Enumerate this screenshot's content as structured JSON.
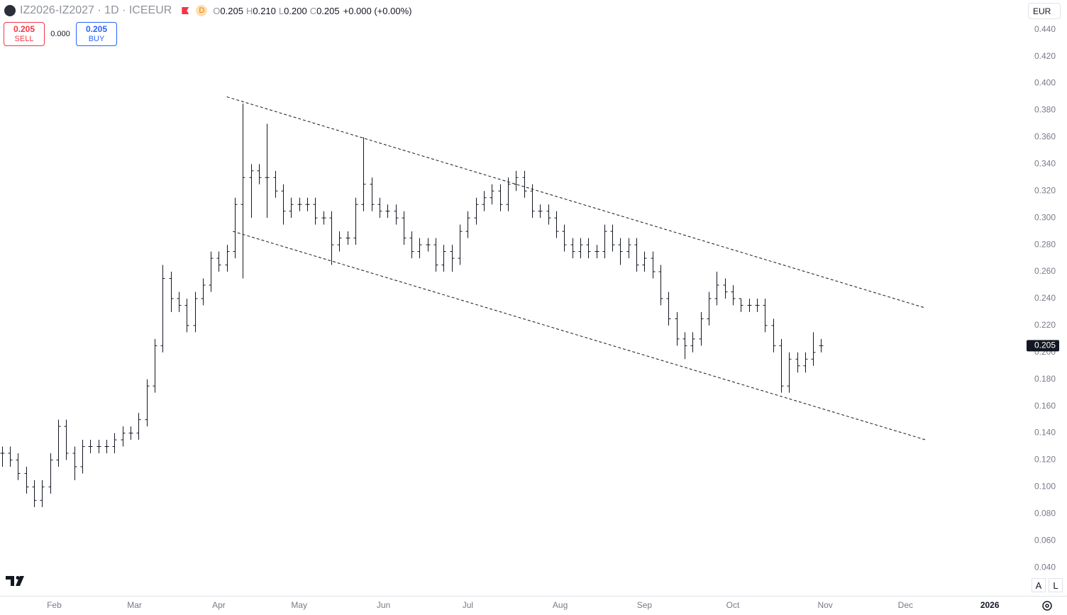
{
  "header": {
    "title": "IZ2026-IZ2027 · 1D · ICEEUR",
    "badge": "D",
    "ohlc": [
      {
        "key": "O",
        "value": "0.205"
      },
      {
        "key": "H",
        "value": "0.210"
      },
      {
        "key": "L",
        "value": "0.200"
      },
      {
        "key": "C",
        "value": "0.205"
      }
    ],
    "change": "+0.000 (+0.00%)"
  },
  "trade": {
    "sell_price": "0.205",
    "sell": "SELL",
    "spread": "0.000",
    "buy_price": "0.205",
    "buy": "BUY"
  },
  "currency": "EUR",
  "scale_buttons": [
    "A",
    "L"
  ],
  "chart_data": {
    "type": "ohlc",
    "color": "#131722",
    "x": [
      0,
      2,
      4,
      6,
      8,
      10,
      12,
      14,
      16,
      18,
      20,
      22,
      24,
      26,
      28,
      30,
      32,
      34,
      36,
      38,
      40,
      42,
      44,
      46,
      48,
      50,
      52,
      54,
      56,
      58,
      60,
      62,
      64,
      66,
      68,
      70,
      72,
      74,
      76,
      78,
      80,
      82,
      84,
      86,
      88,
      90,
      92,
      94,
      96,
      98,
      100,
      102,
      104,
      106,
      108,
      110,
      112,
      114,
      116,
      118,
      120,
      122,
      124,
      126,
      128,
      130,
      132,
      134,
      136,
      138,
      140,
      142,
      144,
      146,
      148,
      150,
      152,
      154,
      156,
      158,
      160,
      162,
      164,
      166,
      168,
      170,
      172,
      174,
      176,
      178,
      180,
      182,
      184,
      186,
      188,
      190,
      192,
      194,
      196,
      198,
      200,
      202,
      204
    ],
    "open": [
      0.125,
      0.125,
      0.12,
      0.11,
      0.1,
      0.09,
      0.1,
      0.12,
      0.145,
      0.125,
      0.115,
      0.13,
      0.13,
      0.13,
      0.13,
      0.135,
      0.14,
      0.14,
      0.15,
      0.175,
      0.205,
      0.255,
      0.24,
      0.235,
      0.22,
      0.24,
      0.25,
      0.27,
      0.265,
      0.275,
      0.31,
      0.33,
      0.335,
      0.33,
      0.33,
      0.32,
      0.305,
      0.31,
      0.31,
      0.31,
      0.3,
      0.3,
      0.28,
      0.285,
      0.285,
      0.31,
      0.325,
      0.31,
      0.305,
      0.305,
      0.3,
      0.285,
      0.275,
      0.28,
      0.28,
      0.265,
      0.275,
      0.27,
      0.29,
      0.3,
      0.31,
      0.315,
      0.32,
      0.31,
      0.325,
      0.33,
      0.32,
      0.305,
      0.305,
      0.3,
      0.29,
      0.28,
      0.275,
      0.28,
      0.275,
      0.275,
      0.29,
      0.28,
      0.275,
      0.28,
      0.265,
      0.27,
      0.26,
      0.24,
      0.225,
      0.21,
      0.205,
      0.21,
      0.225,
      0.24,
      0.25,
      0.245,
      0.24,
      0.235,
      0.235,
      0.235,
      0.22,
      0.205,
      0.175,
      0.195,
      0.19,
      0.195,
      0.205
    ],
    "high": [
      0.13,
      0.13,
      0.125,
      0.115,
      0.105,
      0.105,
      0.125,
      0.15,
      0.15,
      0.13,
      0.135,
      0.135,
      0.135,
      0.135,
      0.14,
      0.145,
      0.145,
      0.155,
      0.18,
      0.21,
      0.265,
      0.26,
      0.245,
      0.24,
      0.245,
      0.255,
      0.275,
      0.275,
      0.28,
      0.315,
      0.385,
      0.34,
      0.34,
      0.37,
      0.335,
      0.325,
      0.315,
      0.315,
      0.315,
      0.315,
      0.305,
      0.305,
      0.29,
      0.29,
      0.315,
      0.36,
      0.33,
      0.315,
      0.31,
      0.31,
      0.305,
      0.29,
      0.285,
      0.285,
      0.285,
      0.28,
      0.28,
      0.295,
      0.305,
      0.315,
      0.32,
      0.325,
      0.325,
      0.33,
      0.335,
      0.335,
      0.325,
      0.31,
      0.31,
      0.305,
      0.295,
      0.285,
      0.285,
      0.285,
      0.28,
      0.295,
      0.295,
      0.285,
      0.285,
      0.285,
      0.275,
      0.275,
      0.265,
      0.245,
      0.23,
      0.215,
      0.215,
      0.23,
      0.245,
      0.26,
      0.255,
      0.25,
      0.24,
      0.24,
      0.24,
      0.24,
      0.225,
      0.21,
      0.2,
      0.2,
      0.2,
      0.215,
      0.21
    ],
    "low": [
      0.115,
      0.115,
      0.105,
      0.095,
      0.085,
      0.085,
      0.095,
      0.115,
      0.12,
      0.105,
      0.11,
      0.125,
      0.125,
      0.125,
      0.125,
      0.13,
      0.135,
      0.135,
      0.145,
      0.17,
      0.2,
      0.23,
      0.23,
      0.215,
      0.215,
      0.235,
      0.245,
      0.26,
      0.26,
      0.27,
      0.255,
      0.3,
      0.325,
      0.3,
      0.315,
      0.295,
      0.3,
      0.305,
      0.305,
      0.295,
      0.295,
      0.265,
      0.275,
      0.28,
      0.28,
      0.305,
      0.305,
      0.3,
      0.3,
      0.295,
      0.28,
      0.27,
      0.27,
      0.275,
      0.26,
      0.26,
      0.26,
      0.265,
      0.285,
      0.295,
      0.305,
      0.31,
      0.305,
      0.305,
      0.32,
      0.315,
      0.3,
      0.3,
      0.295,
      0.285,
      0.275,
      0.27,
      0.27,
      0.27,
      0.27,
      0.27,
      0.275,
      0.265,
      0.27,
      0.26,
      0.26,
      0.255,
      0.235,
      0.22,
      0.205,
      0.195,
      0.2,
      0.205,
      0.22,
      0.235,
      0.24,
      0.235,
      0.23,
      0.23,
      0.23,
      0.215,
      0.2,
      0.17,
      0.17,
      0.185,
      0.185,
      0.19,
      0.2
    ],
    "close": [
      0.125,
      0.12,
      0.11,
      0.1,
      0.09,
      0.1,
      0.12,
      0.145,
      0.125,
      0.115,
      0.13,
      0.13,
      0.13,
      0.13,
      0.135,
      0.14,
      0.14,
      0.15,
      0.175,
      0.205,
      0.255,
      0.24,
      0.235,
      0.22,
      0.24,
      0.25,
      0.27,
      0.265,
      0.275,
      0.31,
      0.33,
      0.335,
      0.33,
      0.33,
      0.32,
      0.305,
      0.31,
      0.31,
      0.31,
      0.3,
      0.3,
      0.28,
      0.285,
      0.285,
      0.31,
      0.325,
      0.31,
      0.305,
      0.305,
      0.3,
      0.285,
      0.275,
      0.28,
      0.28,
      0.265,
      0.275,
      0.27,
      0.29,
      0.3,
      0.31,
      0.315,
      0.32,
      0.31,
      0.325,
      0.33,
      0.32,
      0.305,
      0.305,
      0.3,
      0.29,
      0.28,
      0.275,
      0.28,
      0.275,
      0.275,
      0.29,
      0.28,
      0.275,
      0.28,
      0.265,
      0.27,
      0.26,
      0.24,
      0.225,
      0.21,
      0.205,
      0.21,
      0.225,
      0.24,
      0.25,
      0.245,
      0.24,
      0.235,
      0.235,
      0.235,
      0.22,
      0.205,
      0.175,
      0.195,
      0.19,
      0.195,
      0.2,
      0.205
    ],
    "trendlines": [
      {
        "x": [
          56,
          230
        ],
        "y": [
          0.39,
          0.233
        ]
      },
      {
        "x": [
          57.5,
          230
        ],
        "y": [
          0.29,
          0.135
        ]
      }
    ],
    "last_price": 0.205,
    "xlim": [
      -0.5,
      254.8
    ],
    "ylim": [
      0.019,
      0.462
    ],
    "xticks": [
      {
        "value": 13,
        "label": "Feb"
      },
      {
        "value": 33,
        "label": "Mar"
      },
      {
        "value": 54,
        "label": "Apr"
      },
      {
        "value": 74,
        "label": "May"
      },
      {
        "value": 95,
        "label": "Jun"
      },
      {
        "value": 116,
        "label": "Jul"
      },
      {
        "value": 139,
        "label": "Aug"
      },
      {
        "value": 160,
        "label": "Sep"
      },
      {
        "value": 182,
        "label": "Oct"
      },
      {
        "value": 205,
        "label": "Nov"
      },
      {
        "value": 225,
        "label": "Dec"
      },
      {
        "value": 246,
        "label": "2026"
      }
    ],
    "yticks": [
      {
        "value": 0.04,
        "label": "0.040"
      },
      {
        "value": 0.06,
        "label": "0.060"
      },
      {
        "value": 0.08,
        "label": "0.080"
      },
      {
        "value": 0.1,
        "label": "0.100"
      },
      {
        "value": 0.12,
        "label": "0.120"
      },
      {
        "value": 0.14,
        "label": "0.140"
      },
      {
        "value": 0.16,
        "label": "0.160"
      },
      {
        "value": 0.18,
        "label": "0.180"
      },
      {
        "value": 0.2,
        "label": "0.200"
      },
      {
        "value": 0.22,
        "label": "0.220"
      },
      {
        "value": 0.24,
        "label": "0.240"
      },
      {
        "value": 0.26,
        "label": "0.260"
      },
      {
        "value": 0.28,
        "label": "0.280"
      },
      {
        "value": 0.3,
        "label": "0.300"
      },
      {
        "value": 0.32,
        "label": "0.320"
      },
      {
        "value": 0.34,
        "label": "0.340"
      },
      {
        "value": 0.36,
        "label": "0.360"
      },
      {
        "value": 0.38,
        "label": "0.380"
      },
      {
        "value": 0.4,
        "label": "0.400"
      },
      {
        "value": 0.42,
        "label": "0.420"
      },
      {
        "value": 0.44,
        "label": "0.440"
      }
    ]
  }
}
